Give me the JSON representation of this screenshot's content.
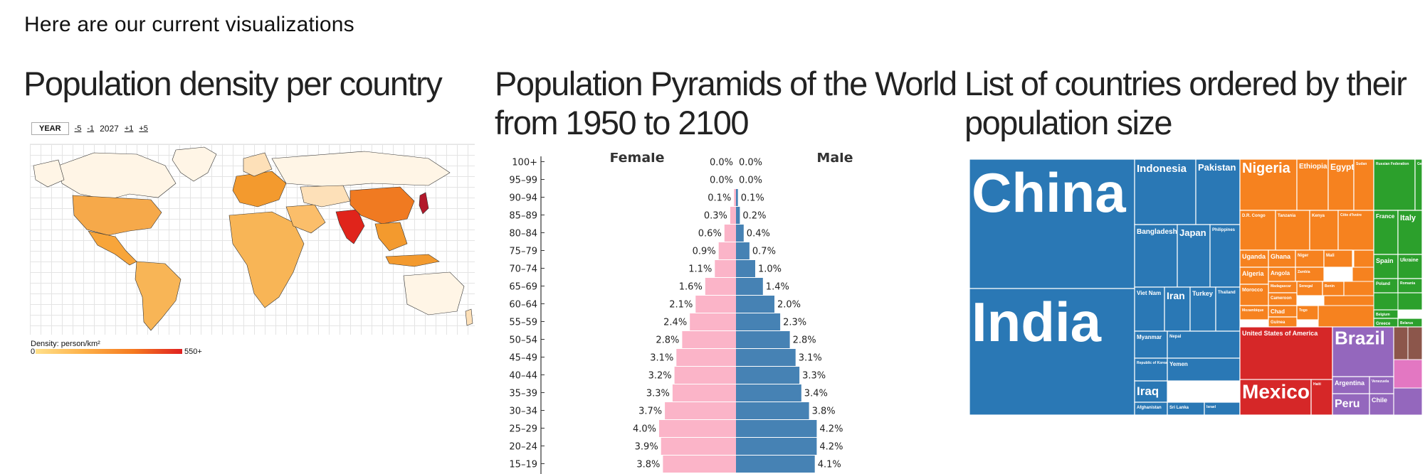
{
  "page": {
    "heading": "Here are our current visualizations"
  },
  "columns": [
    {
      "title": "Population density per country"
    },
    {
      "title": "Population Pyramids of the World from 1950 to 2100"
    },
    {
      "title": "List of countries ordered by their population size"
    }
  ],
  "map": {
    "year_button": "YEAR",
    "links": [
      "-5",
      "-1",
      "+1",
      "+5"
    ],
    "year_value": "2027",
    "legend_label": "Density: person/km²",
    "legend_min": "0",
    "legend_max": "550+",
    "colors": {
      "low": "#fff5e6",
      "mid": "#f8a53a",
      "high": "#e02020",
      "highlight": "#b2182b"
    }
  },
  "pyramid": {
    "female_label": "Female",
    "male_label": "Male",
    "colors": {
      "female": "#fbb4c8",
      "male": "#4682b4"
    },
    "rows": [
      {
        "age": "100+",
        "female": "0.0%",
        "male": "0.0%",
        "f": 0.0,
        "m": 0.0
      },
      {
        "age": "95-99",
        "female": "0.0%",
        "male": "0.0%",
        "f": 0.0,
        "m": 0.0
      },
      {
        "age": "90-94",
        "female": "0.1%",
        "male": "0.1%",
        "f": 0.1,
        "m": 0.1
      },
      {
        "age": "85-89",
        "female": "0.3%",
        "male": "0.2%",
        "f": 0.3,
        "m": 0.2
      },
      {
        "age": "80-84",
        "female": "0.6%",
        "male": "0.4%",
        "f": 0.6,
        "m": 0.4
      },
      {
        "age": "75-79",
        "female": "0.9%",
        "male": "0.7%",
        "f": 0.9,
        "m": 0.7
      },
      {
        "age": "70-74",
        "female": "1.1%",
        "male": "1.0%",
        "f": 1.1,
        "m": 1.0
      },
      {
        "age": "65-69",
        "female": "1.6%",
        "male": "1.4%",
        "f": 1.6,
        "m": 1.4
      },
      {
        "age": "60-64",
        "female": "2.1%",
        "male": "2.0%",
        "f": 2.1,
        "m": 2.0
      },
      {
        "age": "55-59",
        "female": "2.4%",
        "male": "2.3%",
        "f": 2.4,
        "m": 2.3
      },
      {
        "age": "50-54",
        "female": "2.8%",
        "male": "2.8%",
        "f": 2.8,
        "m": 2.8
      },
      {
        "age": "45-49",
        "female": "3.1%",
        "male": "3.1%",
        "f": 3.1,
        "m": 3.1
      },
      {
        "age": "40-44",
        "female": "3.2%",
        "male": "3.3%",
        "f": 3.2,
        "m": 3.3
      },
      {
        "age": "35-39",
        "female": "3.3%",
        "male": "3.4%",
        "f": 3.3,
        "m": 3.4
      },
      {
        "age": "30-34",
        "female": "3.7%",
        "male": "3.8%",
        "f": 3.7,
        "m": 3.8
      },
      {
        "age": "25-29",
        "female": "4.0%",
        "male": "4.2%",
        "f": 4.0,
        "m": 4.2
      },
      {
        "age": "20-24",
        "female": "3.9%",
        "male": "4.2%",
        "f": 3.9,
        "m": 4.2
      },
      {
        "age": "15-19",
        "female": "3.8%",
        "male": "4.1%",
        "f": 3.8,
        "m": 4.1
      }
    ]
  },
  "treemap": {
    "colors": {
      "asia": "#2a78b5",
      "africa": "#f6821f",
      "europe": "#2ca02c",
      "americas_n": "#d62728",
      "americas_s": "#9467bd",
      "oceania": "#e377c2",
      "other": "#8c564b"
    },
    "countries": {
      "china": "China",
      "india": "India",
      "indonesia": "Indonesia",
      "pakistan": "Pakistan",
      "bangladesh": "Bangladesh",
      "japan": "Japan",
      "philippines": "Philippines",
      "vietnam": "Viet Nam",
      "iran": "Iran",
      "turkey": "Turkey",
      "thailand": "Thailand",
      "myanmar": "Myanmar",
      "nepal": "Nepal",
      "korea": "Republic of Korea",
      "yemen": "Yemen",
      "iraq": "Iraq",
      "afghanistan": "Afghanistan",
      "srilanka": "Sri Lanka",
      "israel": "Israel",
      "nigeria": "Nigeria",
      "ethiopia": "Ethiopia",
      "egypt": "Egypt",
      "drc": "D.R. Congo",
      "tanzania": "Tanzania",
      "kenya": "Kenya",
      "sudan": "Sudan",
      "uganda": "Uganda",
      "ghana": "Ghana",
      "niger": "Niger",
      "mali": "Mali",
      "algeria": "Algeria",
      "angola": "Angola",
      "zambia": "Zambia",
      "madagascar": "Madagascar",
      "morocco": "Morocco",
      "cameroon": "Cameroon",
      "senegal": "Senegal",
      "benin": "Benin",
      "mozambique": "Mozambique",
      "cote": "Côte d'Ivoire",
      "chad": "Chad",
      "guinea": "Guinea",
      "togo": "Togo",
      "russia": "Russian Federation",
      "germany": "Germany",
      "france": "France",
      "italy": "Italy",
      "spain": "Spain",
      "ukraine": "Ukraine",
      "poland": "Poland",
      "romania": "Romania",
      "belgium": "Belgium",
      "greece": "Greece",
      "belarus": "Belarus",
      "usa": "United States of America",
      "mexico": "Mexico",
      "haiti": "Haiti",
      "brazil": "Brazil",
      "argentina": "Argentina",
      "venezuela": "Venezuela",
      "peru": "Peru",
      "chile": "Chile"
    }
  }
}
